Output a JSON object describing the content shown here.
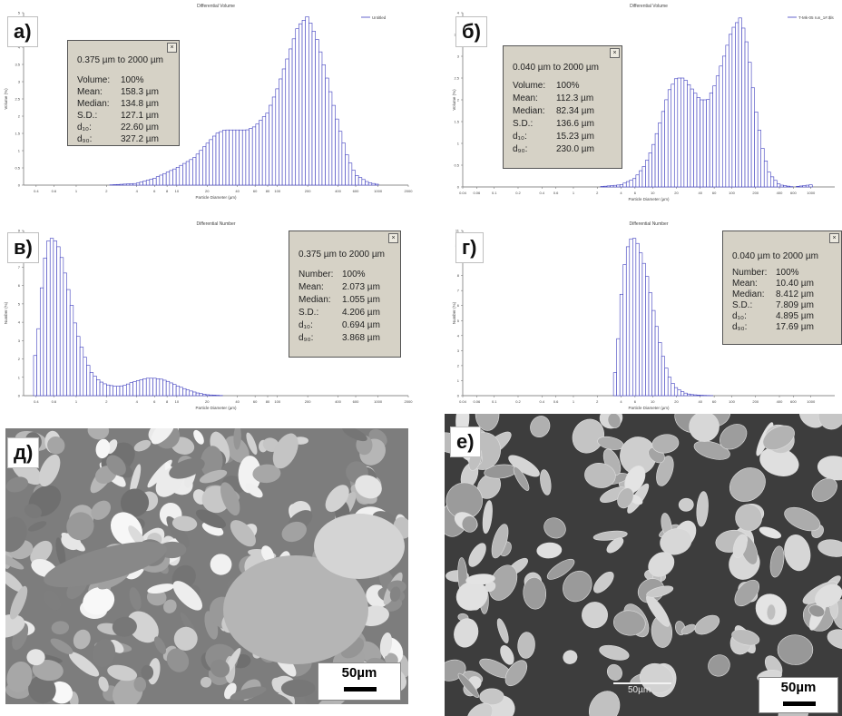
{
  "colors": {
    "bars": "#3d3dbf",
    "stats_bg": "#d6d2c6"
  },
  "chart_data": [
    {
      "id": "a",
      "type": "bar",
      "panel_label": "а)",
      "title": "Differential Volume",
      "xlabel": "Particle Diameter (µm)",
      "ylabel": "Volume (%)",
      "xscale": "log",
      "xlim": [
        0.3,
        2000
      ],
      "ylim": [
        0,
        5
      ],
      "xticks": [
        "0.4",
        "0.6",
        "1",
        "2",
        "4",
        "6",
        "8",
        "10",
        "20",
        "40",
        "60",
        "80",
        "100",
        "200",
        "400",
        "600",
        "1000",
        "2000"
      ],
      "yticks": [
        "0",
        "0.5",
        "1",
        "1.5",
        "2",
        "2.5",
        "3",
        "3.5",
        "4",
        "4.5",
        "5"
      ],
      "legend": "Untitled",
      "legend_position": "top-right",
      "series": [
        {
          "name": "Untitled",
          "x": [
            0.6,
            1.0,
            2.0,
            4.0,
            6.0,
            10,
            15,
            20,
            25,
            30,
            40,
            50,
            60,
            80,
            100,
            130,
            160,
            200,
            250,
            300,
            400,
            500,
            600,
            800,
            1000
          ],
          "y": [
            0,
            0,
            0,
            0.05,
            0.2,
            0.5,
            0.8,
            1.2,
            1.5,
            1.6,
            1.6,
            1.6,
            1.7,
            2.1,
            2.8,
            3.8,
            4.6,
            4.9,
            4.2,
            3.3,
            1.8,
            0.8,
            0.3,
            0.08,
            0.02
          ]
        }
      ],
      "stats": {
        "range": "0.375 µm to 2000 µm",
        "rows": [
          {
            "key": "Volume:",
            "value": "100%"
          },
          {
            "key": "Mean:",
            "value": "158.3 µm"
          },
          {
            "key": "Median:",
            "value": "134.8 µm"
          },
          {
            "key": "S.D.:",
            "value": "127.1 µm"
          },
          {
            "key": "d₁₀:",
            "value": "22.60 µm"
          },
          {
            "key": "d₉₀:",
            "value": "327.2 µm"
          }
        ]
      }
    },
    {
      "id": "b",
      "type": "bar",
      "panel_label": "б)",
      "title": "Differential Volume",
      "xlabel": "Particle Diameter (µm)",
      "ylabel": "Volume (%)",
      "xscale": "log",
      "xlim": [
        0.04,
        2000
      ],
      "ylim": [
        0,
        4
      ],
      "xticks": [
        "0.04",
        "0.06",
        "0.1",
        "0.2",
        "0.4",
        "0.6",
        "1",
        "2",
        "4",
        "6",
        "10",
        "20",
        "40",
        "60",
        "100",
        "200",
        "400",
        "600",
        "1000"
      ],
      "yticks": [
        "0",
        "0.5",
        "1",
        "1.5",
        "2",
        "2.5",
        "3",
        "3.5",
        "4"
      ],
      "legend": "T-Mk-05 run_1#.$ls",
      "legend_position": "top-right",
      "series": [
        {
          "name": "T-Mk-05 run_1#.$ls",
          "x": [
            2,
            4,
            6,
            8,
            10,
            13,
            16,
            20,
            25,
            30,
            40,
            50,
            60,
            80,
            100,
            130,
            160,
            200,
            250,
            300,
            400,
            600,
            1000
          ],
          "y": [
            0,
            0.05,
            0.2,
            0.5,
            0.9,
            1.6,
            2.2,
            2.5,
            2.5,
            2.3,
            2.0,
            2.0,
            2.3,
            3.0,
            3.6,
            3.9,
            3.2,
            1.8,
            0.8,
            0.3,
            0.05,
            0.0,
            0.05
          ]
        }
      ],
      "stats": {
        "range": "0.040 µm to 2000 µm",
        "rows": [
          {
            "key": "Volume:",
            "value": "100%"
          },
          {
            "key": "Mean:",
            "value": "112.3 µm"
          },
          {
            "key": "Median:",
            "value": "82.34 µm"
          },
          {
            "key": "S.D.:",
            "value": "136.6 µm"
          },
          {
            "key": "d₁₀:",
            "value": "15.23 µm"
          },
          {
            "key": "d₉₀:",
            "value": "230.0 µm"
          }
        ]
      }
    },
    {
      "id": "v",
      "type": "bar",
      "panel_label": "в)",
      "title": "Differential Number",
      "xlabel": "Particle Diameter (µm)",
      "ylabel": "Number (%)",
      "xscale": "log",
      "xlim": [
        0.3,
        2000
      ],
      "ylim": [
        0,
        9
      ],
      "xticks": [
        "0.4",
        "0.6",
        "1",
        "2",
        "4",
        "6",
        "8",
        "10",
        "20",
        "40",
        "60",
        "80",
        "100",
        "200",
        "400",
        "600",
        "1000",
        "2000"
      ],
      "yticks": [
        "0",
        "1",
        "2",
        "3",
        "4",
        "5",
        "6",
        "7",
        "8",
        "9"
      ],
      "series": [
        {
          "name": "",
          "x": [
            0.375,
            0.42,
            0.47,
            0.52,
            0.58,
            0.65,
            0.73,
            0.82,
            0.92,
            1.0,
            1.2,
            1.4,
            1.7,
            2.0,
            2.5,
            3.0,
            3.5,
            4.0,
            5.0,
            6.0,
            7.0,
            8.0,
            10,
            13,
            16,
            20,
            30
          ],
          "y": [
            1.4,
            3.5,
            6.8,
            8.4,
            8.6,
            8.3,
            7.4,
            6.0,
            4.7,
            3.6,
            2.2,
            1.3,
            0.8,
            0.6,
            0.5,
            0.55,
            0.7,
            0.8,
            0.95,
            0.95,
            0.9,
            0.8,
            0.55,
            0.3,
            0.15,
            0.05,
            0.0
          ]
        }
      ],
      "stats": {
        "range": "0.375 µm to 2000 µm",
        "rows": [
          {
            "key": "Number:",
            "value": "100%"
          },
          {
            "key": "Mean:",
            "value": "2.073 µm"
          },
          {
            "key": "Median:",
            "value": "1.055 µm"
          },
          {
            "key": "S.D.:",
            "value": "4.206 µm"
          },
          {
            "key": "d₁₀:",
            "value": "0.694 µm"
          },
          {
            "key": "d₉₀:",
            "value": "3.868 µm"
          }
        ]
      }
    },
    {
      "id": "g",
      "type": "bar",
      "panel_label": "г)",
      "title": "Differential Number",
      "xlabel": "Particle Diameter (µm)",
      "ylabel": "Number (%)",
      "xscale": "log",
      "xlim": [
        0.04,
        2000
      ],
      "ylim": [
        0,
        11
      ],
      "xticks": [
        "0.04",
        "0.06",
        "0.1",
        "0.2",
        "0.4",
        "0.6",
        "1",
        "2",
        "4",
        "6",
        "10",
        "20",
        "40",
        "60",
        "100",
        "200",
        "400",
        "600",
        "1000"
      ],
      "yticks": [
        "0",
        "1",
        "2",
        "3",
        "4",
        "5",
        "6",
        "7",
        "8",
        "9",
        "10",
        "11"
      ],
      "series": [
        {
          "name": "",
          "x": [
            3.2,
            3.6,
            4.0,
            4.5,
            5.0,
            5.6,
            6.3,
            7.0,
            8.0,
            9.0,
            10,
            11.5,
            13,
            15,
            17,
            20,
            25,
            30,
            40,
            60
          ],
          "y": [
            0.5,
            3.0,
            6.5,
            9.0,
            10.2,
            10.6,
            10.3,
            9.6,
            8.6,
            7.4,
            6.0,
            4.4,
            3.0,
            1.8,
            1.0,
            0.5,
            0.2,
            0.08,
            0.03,
            0.0
          ]
        }
      ],
      "stats": {
        "range": "0.040 µm to 2000 µm",
        "rows": [
          {
            "key": "Number:",
            "value": "100%"
          },
          {
            "key": "Mean:",
            "value": "10.40 µm"
          },
          {
            "key": "Median:",
            "value": "8.412 µm"
          },
          {
            "key": "S.D.:",
            "value": "7.809 µm"
          },
          {
            "key": "d₁₀:",
            "value": "4.895 µm"
          },
          {
            "key": "d₉₀:",
            "value": "17.69 µm"
          }
        ]
      }
    }
  ],
  "sem_images": [
    {
      "label": "д)",
      "scale": "50µm"
    },
    {
      "label": "е)",
      "scale": "50µm",
      "embedded_scale": "50µm"
    }
  ]
}
